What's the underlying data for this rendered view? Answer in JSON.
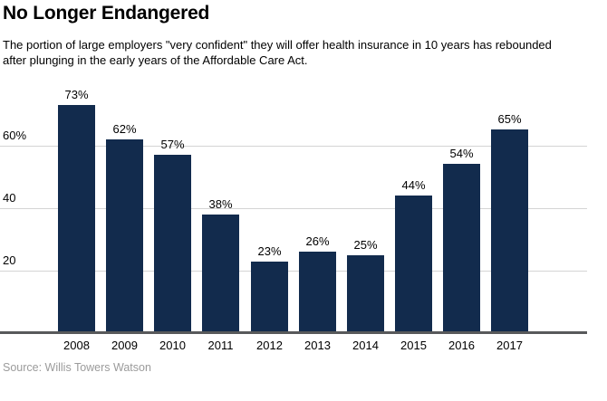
{
  "title": "No Longer Endangered",
  "subtitle_lines": [
    "The portion of large employers \"very confident\" they will offer health insurance in 10 years has rebounded",
    "after plunging in the early years of the Affordable Care Act."
  ],
  "source": "Source: Willis Towers Watson",
  "colors": {
    "bar": "#122b4d",
    "gridline": "#d4d4d4",
    "axis": "#58595b",
    "source_text": "#9b9b9b",
    "text": "#000000",
    "background": "#ffffff"
  },
  "chart_data": {
    "type": "bar",
    "title": "No Longer Endangered",
    "subtitle": "The portion of large employers \"very confident\" they will offer health insurance in 10 years has rebounded after plunging in the early years of the Affordable Care Act.",
    "categories": [
      "2008",
      "2009",
      "2010",
      "2011",
      "2012",
      "2013",
      "2014",
      "2015",
      "2016",
      "2017"
    ],
    "values": [
      73,
      62,
      57,
      38,
      23,
      26,
      25,
      44,
      54,
      65
    ],
    "value_labels": [
      "73%",
      "62%",
      "57%",
      "38%",
      "23%",
      "26%",
      "25%",
      "44%",
      "54%",
      "65%"
    ],
    "xlabel": "",
    "ylabel": "",
    "ylim": [
      0,
      80
    ],
    "y_ticks": [
      {
        "value": 20,
        "label": "20"
      },
      {
        "value": 40,
        "label": "40"
      },
      {
        "value": 60,
        "label": "60%"
      }
    ],
    "grid": true,
    "legend": false,
    "bar_color": "#122b4d",
    "source": "Source: Willis Towers Watson"
  }
}
